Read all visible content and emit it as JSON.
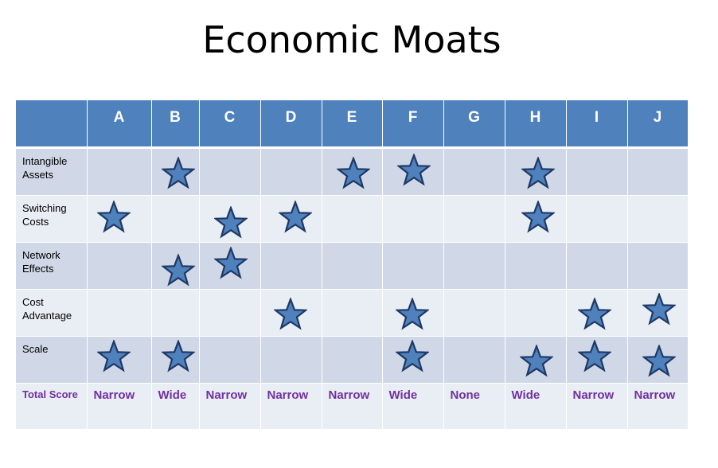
{
  "title": "Economic Moats",
  "colors": {
    "header_bg": "#4f81bd",
    "row_dark": "#d0d8e8",
    "row_light": "#e9edf4",
    "star_fill": "#4f81bd",
    "star_stroke": "#1f3864",
    "score_text": "#7030a0"
  },
  "columns": [
    "A",
    "B",
    "C",
    "D",
    "E",
    "F",
    "G",
    "H",
    "I",
    "J"
  ],
  "rows": [
    {
      "label_line1": "Intangible",
      "label_line2": "Assets",
      "stars": [
        false,
        true,
        false,
        false,
        true,
        true,
        false,
        true,
        false,
        false
      ]
    },
    {
      "label_line1": "Switching",
      "label_line2": "Costs",
      "stars": [
        true,
        false,
        true,
        true,
        false,
        false,
        false,
        true,
        false,
        false
      ]
    },
    {
      "label_line1": "Network",
      "label_line2": "Effects",
      "stars": [
        false,
        true,
        true,
        false,
        false,
        false,
        false,
        false,
        false,
        false
      ]
    },
    {
      "label_line1": "Cost",
      "label_line2": "Advantage",
      "stars": [
        false,
        false,
        false,
        true,
        false,
        true,
        false,
        false,
        true,
        true
      ]
    },
    {
      "label_line1": "Scale",
      "label_line2": "",
      "stars": [
        true,
        true,
        false,
        false,
        false,
        true,
        false,
        true,
        true,
        true
      ]
    }
  ],
  "total": {
    "label": "Total Score",
    "scores": [
      "Narrow",
      "Wide",
      "Narrow",
      "Narrow",
      "Narrow",
      "Wide",
      "None",
      "Wide",
      "Narrow",
      "Narrow"
    ]
  },
  "icon": "star-icon"
}
